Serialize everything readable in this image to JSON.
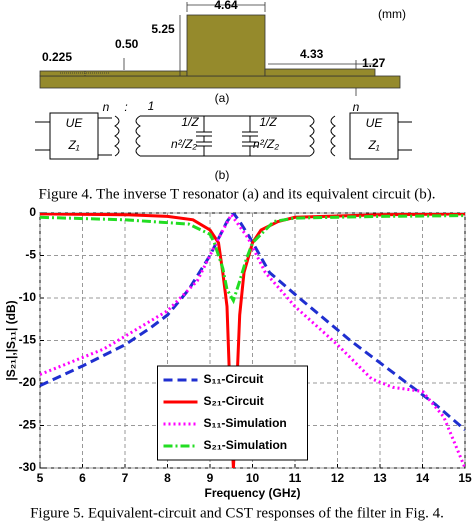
{
  "figure4": {
    "panel_a": {
      "dimensions": [
        "4.64",
        "5.25",
        "(mm)",
        "0.225",
        "0.50",
        "4.33",
        "1.27"
      ],
      "label": "(a)"
    },
    "panel_b": {
      "labels": [
        "UE",
        "Z₁",
        "n",
        ":",
        "1",
        "1/Z",
        "n²/Z₂",
        "1/Z",
        "n²/Z₂",
        "n",
        "UE",
        "Z₁"
      ],
      "label": "(b)"
    },
    "caption": "Figure 4. The inverse T resonator (a) and its equivalent circuit (b)."
  },
  "chart_data": {
    "type": "line",
    "xlabel": "Frequency (GHz)",
    "ylabel": "|S₂₁|,|S₁₁| (dB)",
    "xlim": [
      5,
      15
    ],
    "xticks": [
      5,
      6,
      7,
      8,
      9,
      10,
      11,
      12,
      13,
      14,
      15
    ],
    "ylim": [
      -30,
      0
    ],
    "yticks": [
      0,
      -5,
      -10,
      -15,
      -20,
      -25,
      -30
    ],
    "grid": true,
    "legend": "lower center",
    "series": [
      {
        "name": "S₁₁-Circuit",
        "color": "#1f2fd0",
        "style": "dashed",
        "x": [
          5,
          6,
          7,
          7.6,
          8,
          8.5,
          9,
          9.2,
          9.4,
          9.55,
          9.7,
          9.95,
          10.4,
          11.1,
          12.3,
          13.5,
          14.3,
          15
        ],
        "values": [
          -20.3,
          -18,
          -15.5,
          -13.5,
          -12,
          -9,
          -5,
          -3,
          -1,
          0,
          -1,
          -3,
          -7,
          -10,
          -15,
          -19.5,
          -22.5,
          -25.5
        ]
      },
      {
        "name": "S₂₁-Circuit",
        "color": "#ff0000",
        "style": "solid",
        "x": [
          5,
          7,
          8,
          8.6,
          9,
          9.2,
          9.3,
          9.4,
          9.45,
          9.5,
          9.55,
          9.6,
          9.65,
          9.7,
          9.8,
          10,
          10.2,
          10.6,
          11,
          13,
          15
        ],
        "values": [
          -0.1,
          -0.2,
          -0.4,
          -0.8,
          -2,
          -3.5,
          -7,
          -11,
          -18,
          -25,
          -30,
          -25,
          -18,
          -12,
          -7,
          -3.5,
          -2,
          -1,
          -0.5,
          -0.2,
          -0.1
        ]
      },
      {
        "name": "S₁₁-Simulation",
        "color": "#ff00ff",
        "style": "dotted",
        "x": [
          5,
          6,
          6.5,
          7.5,
          8,
          8.7,
          9.2,
          9.5,
          9.9,
          10.3,
          11,
          12,
          12.8,
          13.3,
          14,
          14.5,
          15
        ],
        "values": [
          -19,
          -17,
          -16,
          -13,
          -11.5,
          -8,
          -3,
          -0.2,
          -3,
          -7,
          -11,
          -15.5,
          -19.5,
          -20.5,
          -21,
          -24,
          -30
        ]
      },
      {
        "name": "S₂₁-Simulation",
        "color": "#22dd22",
        "style": "dashdot",
        "x": [
          5,
          7,
          8.5,
          9,
          9.1,
          9.3,
          9.4,
          9.55,
          9.7,
          9.85,
          10,
          10.5,
          11,
          13,
          15
        ],
        "values": [
          -0.5,
          -0.8,
          -1.3,
          -2.5,
          -3.5,
          -6.5,
          -9,
          -10.3,
          -8,
          -5.5,
          -3.5,
          -1,
          -0.6,
          -0.4,
          -0.3
        ]
      }
    ]
  },
  "figure5_caption": "Figure 5. Equivalent-circuit and CST responses of the filter in Fig. 4."
}
